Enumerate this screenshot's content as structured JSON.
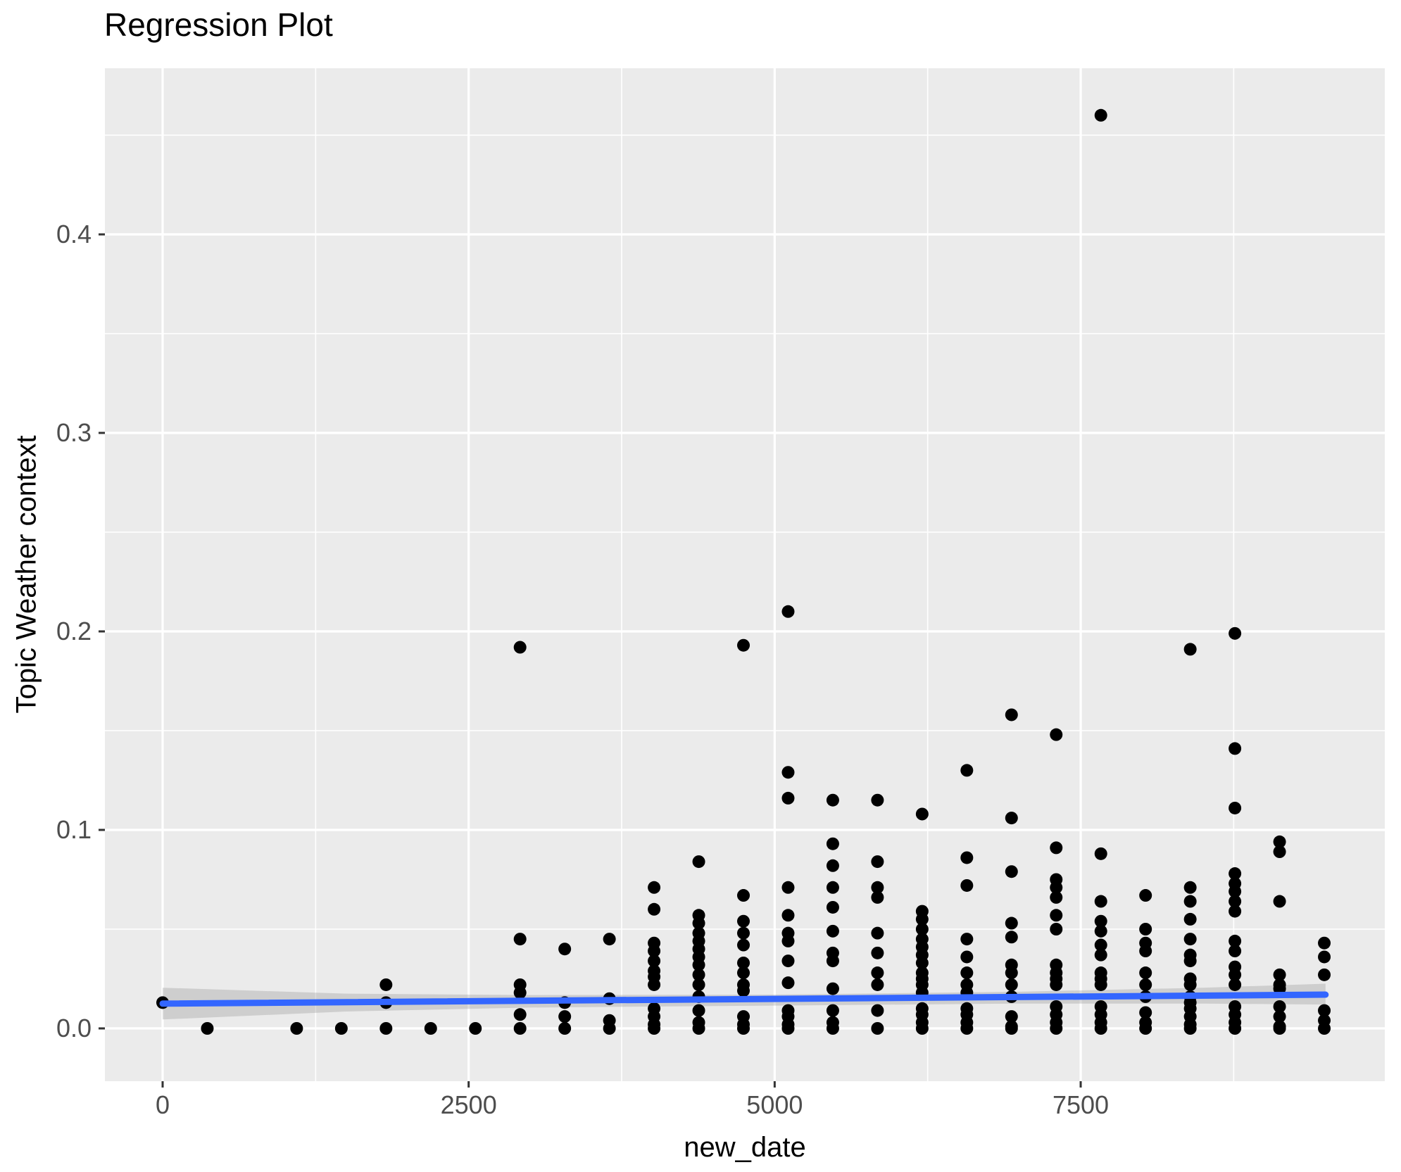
{
  "title": "Regression Plot",
  "colors": {
    "panel_bg": "#EBEBEB",
    "grid": "#FFFFFF",
    "point": "#000000",
    "regression_line": "#3366FF",
    "confidence_band": "#999999",
    "axis_text": "#4D4D4D",
    "title_text": "#000000",
    "tick_mark": "#333333"
  },
  "chart_data": {
    "type": "scatter",
    "title": "Regression Plot",
    "xlabel": "new_date",
    "ylabel": "Topic Weather context",
    "legend": "none",
    "grid": "white major+minor gridlines on grey panel (ggplot2 style)",
    "xlim": [
      -471,
      9980
    ],
    "ylim": [
      -0.028,
      0.484
    ],
    "x_ticks": [
      {
        "value": 0,
        "label": "0"
      },
      {
        "value": 2500,
        "label": "2500"
      },
      {
        "value": 5000,
        "label": "5000"
      },
      {
        "value": 7500,
        "label": "7500"
      }
    ],
    "y_ticks": [
      {
        "value": 0.0,
        "label": "0.0"
      },
      {
        "value": 0.1,
        "label": "0.1"
      },
      {
        "value": 0.2,
        "label": "0.2"
      },
      {
        "value": 0.3,
        "label": "0.3"
      },
      {
        "value": 0.4,
        "label": "0.4"
      }
    ],
    "x_minor_ticks": [
      1250,
      3750,
      6250,
      8750
    ],
    "y_minor_ticks": [
      0.05,
      0.15,
      0.25,
      0.35,
      0.45
    ],
    "clusters": [
      {
        "x": 0,
        "ys": [
          0.013
        ]
      },
      {
        "x": 365,
        "ys": [
          0.0
        ]
      },
      {
        "x": 1095,
        "ys": [
          0.0
        ]
      },
      {
        "x": 1460,
        "ys": [
          0.0
        ]
      },
      {
        "x": 1825,
        "ys": [
          0.022,
          0.013,
          0.0
        ]
      },
      {
        "x": 2190,
        "ys": [
          0.0
        ]
      },
      {
        "x": 2555,
        "ys": [
          0.0
        ]
      },
      {
        "x": 2920,
        "ys": [
          0.192,
          0.045,
          0.022,
          0.018,
          0.007,
          0.0
        ]
      },
      {
        "x": 3285,
        "ys": [
          0.04,
          0.013,
          0.006,
          0.0
        ]
      },
      {
        "x": 3650,
        "ys": [
          0.045,
          0.015,
          0.004,
          0.0
        ]
      },
      {
        "x": 4015,
        "ys": [
          0.071,
          0.06,
          0.043,
          0.039,
          0.034,
          0.029,
          0.026,
          0.022,
          0.01,
          0.006,
          0.002,
          0.0
        ]
      },
      {
        "x": 4380,
        "ys": [
          0.084,
          0.057,
          0.053,
          0.048,
          0.044,
          0.04,
          0.036,
          0.032,
          0.027,
          0.022,
          0.016,
          0.009,
          0.003,
          0.0
        ]
      },
      {
        "x": 4745,
        "ys": [
          0.193,
          0.067,
          0.054,
          0.048,
          0.042,
          0.033,
          0.028,
          0.022,
          0.019,
          0.006,
          0.002,
          0.0
        ]
      },
      {
        "x": 5110,
        "ys": [
          0.21,
          0.129,
          0.116,
          0.071,
          0.057,
          0.048,
          0.044,
          0.034,
          0.023,
          0.009,
          0.006,
          0.002,
          0.0
        ]
      },
      {
        "x": 5475,
        "ys": [
          0.115,
          0.093,
          0.082,
          0.071,
          0.061,
          0.049,
          0.038,
          0.034,
          0.02,
          0.009,
          0.003,
          0.0
        ]
      },
      {
        "x": 5840,
        "ys": [
          0.115,
          0.084,
          0.071,
          0.066,
          0.048,
          0.038,
          0.028,
          0.022,
          0.009,
          0.0
        ]
      },
      {
        "x": 6205,
        "ys": [
          0.108,
          0.059,
          0.055,
          0.05,
          0.045,
          0.041,
          0.037,
          0.033,
          0.028,
          0.025,
          0.022,
          0.018,
          0.01,
          0.007,
          0.003,
          0.0
        ]
      },
      {
        "x": 6570,
        "ys": [
          0.13,
          0.086,
          0.072,
          0.045,
          0.036,
          0.028,
          0.022,
          0.018,
          0.01,
          0.007,
          0.003,
          0.0
        ]
      },
      {
        "x": 6935,
        "ys": [
          0.158,
          0.106,
          0.079,
          0.053,
          0.046,
          0.032,
          0.028,
          0.022,
          0.016,
          0.006,
          0.001,
          0.0
        ]
      },
      {
        "x": 7300,
        "ys": [
          0.148,
          0.091,
          0.075,
          0.071,
          0.066,
          0.057,
          0.05,
          0.032,
          0.028,
          0.025,
          0.022,
          0.011,
          0.007,
          0.003,
          0.0
        ]
      },
      {
        "x": 7665,
        "ys": [
          0.46,
          0.088,
          0.064,
          0.054,
          0.049,
          0.042,
          0.037,
          0.028,
          0.025,
          0.022,
          0.011,
          0.007,
          0.003,
          0.0
        ]
      },
      {
        "x": 8030,
        "ys": [
          0.067,
          0.05,
          0.043,
          0.039,
          0.028,
          0.022,
          0.016,
          0.008,
          0.003,
          0.0
        ]
      },
      {
        "x": 8395,
        "ys": [
          0.191,
          0.071,
          0.064,
          0.055,
          0.045,
          0.037,
          0.034,
          0.025,
          0.022,
          0.016,
          0.013,
          0.01,
          0.006,
          0.002,
          0.0
        ]
      },
      {
        "x": 8760,
        "ys": [
          0.199,
          0.141,
          0.111,
          0.078,
          0.073,
          0.069,
          0.064,
          0.059,
          0.044,
          0.039,
          0.031,
          0.027,
          0.022,
          0.011,
          0.007,
          0.003,
          0.0
        ]
      },
      {
        "x": 9125,
        "ys": [
          0.094,
          0.089,
          0.064,
          0.027,
          0.022,
          0.02,
          0.011,
          0.006,
          0.001,
          0.0
        ]
      },
      {
        "x": 9490,
        "ys": [
          0.043,
          0.036,
          0.027,
          0.009,
          0.004,
          0.0
        ]
      }
    ],
    "regression_line": {
      "x": [
        0,
        9500
      ],
      "y": [
        0.0125,
        0.017
      ]
    },
    "confidence_band": [
      {
        "x": 0,
        "hi": 0.0205,
        "lo": 0.0045
      },
      {
        "x": 1500,
        "hi": 0.0175,
        "lo": 0.0085
      },
      {
        "x": 3000,
        "hi": 0.0168,
        "lo": 0.0105
      },
      {
        "x": 5000,
        "hi": 0.017,
        "lo": 0.0115
      },
      {
        "x": 7000,
        "hi": 0.0185,
        "lo": 0.0125
      },
      {
        "x": 8500,
        "hi": 0.0205,
        "lo": 0.0125
      },
      {
        "x": 9500,
        "hi": 0.0225,
        "lo": 0.012
      }
    ]
  }
}
